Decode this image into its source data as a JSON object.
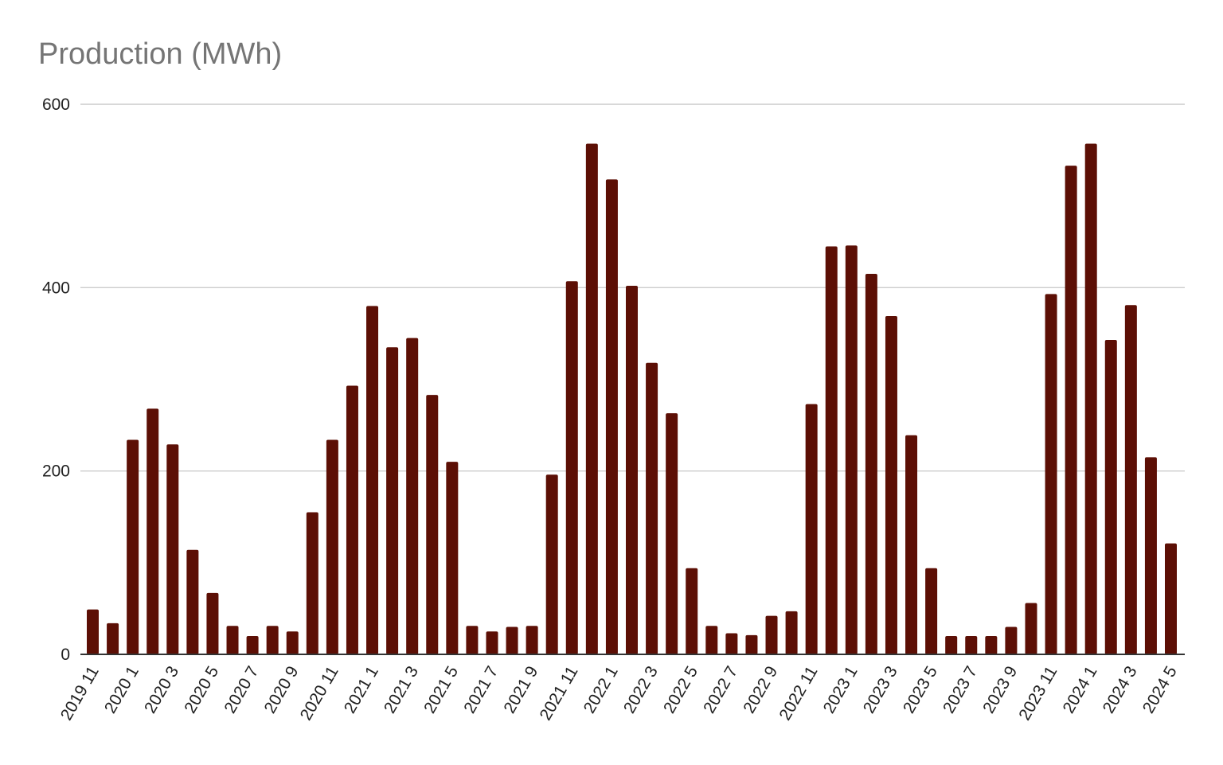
{
  "chart_data": {
    "type": "bar",
    "title": "Production (MWh)",
    "xlabel": "",
    "ylabel": "",
    "ylim": [
      0,
      600
    ],
    "yticks": [
      0,
      200,
      400,
      600
    ],
    "grid": true,
    "legend": "none",
    "bar_color": "#5c0f05",
    "categories": [
      "2019 11",
      "2019 12",
      "2020 1",
      "2020 2",
      "2020 3",
      "2020 4",
      "2020 5",
      "2020 6",
      "2020 7",
      "2020 8",
      "2020 9",
      "2020 10",
      "2020 11",
      "2020 12",
      "2021 1",
      "2021 2",
      "2021 3",
      "2021 4",
      "2021 5",
      "2021 6",
      "2021 7",
      "2021 8",
      "2021 9",
      "2021 10",
      "2021 11",
      "2021 12",
      "2022 1",
      "2022 2",
      "2022 3",
      "2022 4",
      "2022 5",
      "2022 6",
      "2022 7",
      "2022 8",
      "2022 9",
      "2022 10",
      "2022 11",
      "2022 12",
      "2023 1",
      "2023 2",
      "2023 3",
      "2023 4",
      "2023 5",
      "2023 6",
      "2023 7",
      "2023 8",
      "2023 9",
      "2023 10",
      "2023 11",
      "2023 12",
      "2024 1",
      "2024 2",
      "2024 3",
      "2024 4",
      "2024 5"
    ],
    "visible_tick_labels": [
      "2019 11",
      "2020 1",
      "2020 3",
      "2020 5",
      "2020 7",
      "2020 9",
      "2020 11",
      "2021 1",
      "2021 3",
      "2021 5",
      "2021 7",
      "2021 9",
      "2021 11",
      "2022 1",
      "2022 3",
      "2022 5",
      "2022 7",
      "2022 9",
      "2022 11",
      "2023 1",
      "2023 3",
      "2023 5",
      "2023 7",
      "2023 9",
      "2023 11",
      "2024 1",
      "2024 3",
      "2024 5"
    ],
    "values": [
      49,
      34,
      234,
      268,
      229,
      114,
      67,
      31,
      20,
      31,
      25,
      155,
      234,
      293,
      380,
      335,
      345,
      283,
      210,
      31,
      25,
      30,
      31,
      196,
      407,
      557,
      518,
      402,
      318,
      263,
      94,
      31,
      23,
      21,
      42,
      47,
      273,
      445,
      446,
      415,
      369,
      239,
      94,
      20,
      20,
      20,
      30,
      56,
      393,
      533,
      557,
      343,
      381,
      215,
      121
    ]
  }
}
